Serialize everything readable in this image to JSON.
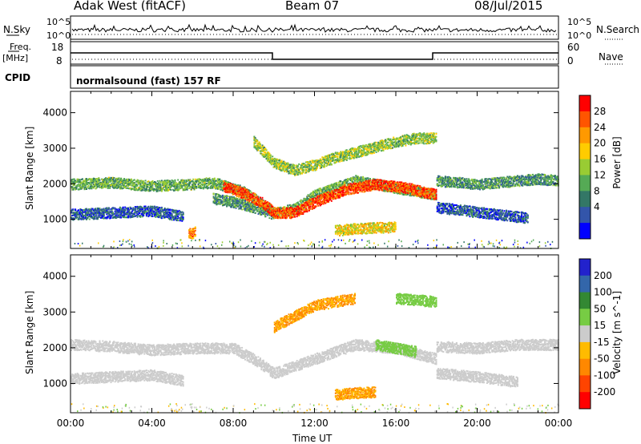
{
  "header": {
    "station": "Adak West (fitACF)",
    "beam": "Beam 07",
    "date": "08/Jul/2015"
  },
  "status_panel": {
    "nsky_label": "N.Sky",
    "nsky_ticks": [
      "10^5",
      "10^0"
    ],
    "nsearch_label": "N.Search",
    "nsearch_ticks": [
      "10^5",
      "10^0"
    ],
    "freq_label": "Freq.",
    "freq_unit": "[MHz]",
    "freq_ticks": [
      "18",
      "8"
    ],
    "nave_label": "Nave",
    "nave_ticks": [
      "60",
      "0"
    ],
    "cpid_label": "CPID",
    "cpid_text": "normalsound (fast) 157 RF"
  },
  "power_colorbar": {
    "label": "Power [dB]",
    "ticks": [
      "28",
      "24",
      "20",
      "16",
      "12",
      "8",
      "4"
    ],
    "colors": [
      "#ff0000",
      "#ff5500",
      "#ff9900",
      "#ffcc00",
      "#99cc33",
      "#55aa55",
      "#337766",
      "#3355aa",
      "#0000ff"
    ]
  },
  "velocity_colorbar": {
    "label": "Velocity [m s^-1]",
    "ticks": [
      "200",
      "100",
      "50",
      "15",
      "-15",
      "-50",
      "-100",
      "-200"
    ],
    "colors": [
      "#2222cc",
      "#3366aa",
      "#338833",
      "#77cc44",
      "#cccccc",
      "#ffbb00",
      "#ff8800",
      "#ff4400",
      "#ff0000"
    ]
  },
  "xaxis": {
    "label": "Time UT",
    "ticks": [
      "00:00",
      "04:00",
      "08:00",
      "12:00",
      "16:00",
      "20:00",
      "00:00"
    ]
  },
  "chart_data": [
    {
      "type": "heatmap",
      "panel": "power",
      "ylabel": "Slant Range [km]",
      "yticks": [
        1000,
        2000,
        3000,
        4000
      ],
      "ylim": [
        180,
        4600
      ],
      "xlim": [
        0,
        24
      ],
      "xlabel": "Time UT",
      "value_label": "Power [dB]",
      "value_range": [
        0,
        30
      ],
      "bands": [
        {
          "x": [
            0,
            2,
            4,
            6,
            7,
            8.5,
            10,
            11,
            12,
            14,
            16,
            18
          ],
          "y": [
            2000,
            2050,
            1950,
            2000,
            2050,
            1800,
            1200,
            1300,
            1700,
            2100,
            1900,
            1700
          ],
          "value": 12
        },
        {
          "x": [
            0,
            2,
            4,
            5.5
          ],
          "y": [
            1150,
            1200,
            1250,
            1100
          ],
          "value": 6
        },
        {
          "x": [
            7,
            8,
            9,
            10
          ],
          "y": [
            1600,
            1500,
            1350,
            1150
          ],
          "value": 10
        },
        {
          "x": [
            7.5,
            8.5,
            9.5,
            10,
            11,
            12,
            13.5,
            15,
            16.5,
            18
          ],
          "y": [
            1950,
            1750,
            1450,
            1200,
            1200,
            1500,
            1850,
            2000,
            1900,
            1700
          ],
          "value": 26
        },
        {
          "x": [
            9,
            10,
            11,
            12,
            13,
            14,
            15,
            16,
            17,
            18
          ],
          "y": [
            3200,
            2600,
            2400,
            2550,
            2750,
            2900,
            3050,
            3200,
            3300,
            3300
          ],
          "value": 14
        },
        {
          "x": [
            13,
            14,
            15,
            16
          ],
          "y": [
            700,
            750,
            780,
            800
          ],
          "value": 18
        },
        {
          "x": [
            18,
            19,
            20,
            21,
            22,
            23,
            24
          ],
          "y": [
            2100,
            2050,
            2000,
            2050,
            2100,
            2150,
            2100
          ],
          "value": 10
        },
        {
          "x": [
            18,
            19.5,
            21,
            22.5
          ],
          "y": [
            1350,
            1250,
            1150,
            1050
          ],
          "value": 6
        },
        {
          "x": [
            5.8,
            6.1
          ],
          "y": [
            600,
            650
          ],
          "value": 22
        }
      ]
    },
    {
      "type": "heatmap",
      "panel": "velocity",
      "ylabel": "Slant Range [km]",
      "yticks": [
        1000,
        2000,
        3000,
        4000
      ],
      "ylim": [
        180,
        4600
      ],
      "xlim": [
        0,
        24
      ],
      "xlabel": "Time UT",
      "value_label": "Velocity [m s^-1]",
      "value_range": [
        -200,
        200
      ],
      "bands": [
        {
          "x": [
            0,
            2,
            4,
            6,
            8,
            9,
            10,
            12,
            14,
            16,
            18
          ],
          "y": [
            2100,
            2050,
            1950,
            2000,
            2000,
            1700,
            1300,
            1700,
            2100,
            2000,
            1700
          ],
          "value": 0
        },
        {
          "x": [
            0,
            2,
            4,
            5.5
          ],
          "y": [
            1150,
            1200,
            1250,
            1100
          ],
          "value": 0
        },
        {
          "x": [
            10,
            11,
            12,
            13,
            14
          ],
          "y": [
            2600,
            2900,
            3200,
            3300,
            3400
          ],
          "value": -50
        },
        {
          "x": [
            13,
            14,
            15
          ],
          "y": [
            700,
            750,
            780
          ],
          "value": -50
        },
        {
          "x": [
            15,
            16,
            17
          ],
          "y": [
            2100,
            2000,
            1900
          ],
          "value": 30
        },
        {
          "x": [
            16,
            17,
            18
          ],
          "y": [
            3400,
            3350,
            3300
          ],
          "value": 30
        },
        {
          "x": [
            18,
            20,
            22,
            24
          ],
          "y": [
            2050,
            2000,
            2100,
            2100
          ],
          "value": 0
        },
        {
          "x": [
            18,
            20,
            22
          ],
          "y": [
            1300,
            1200,
            1050
          ],
          "value": 0
        }
      ]
    }
  ]
}
